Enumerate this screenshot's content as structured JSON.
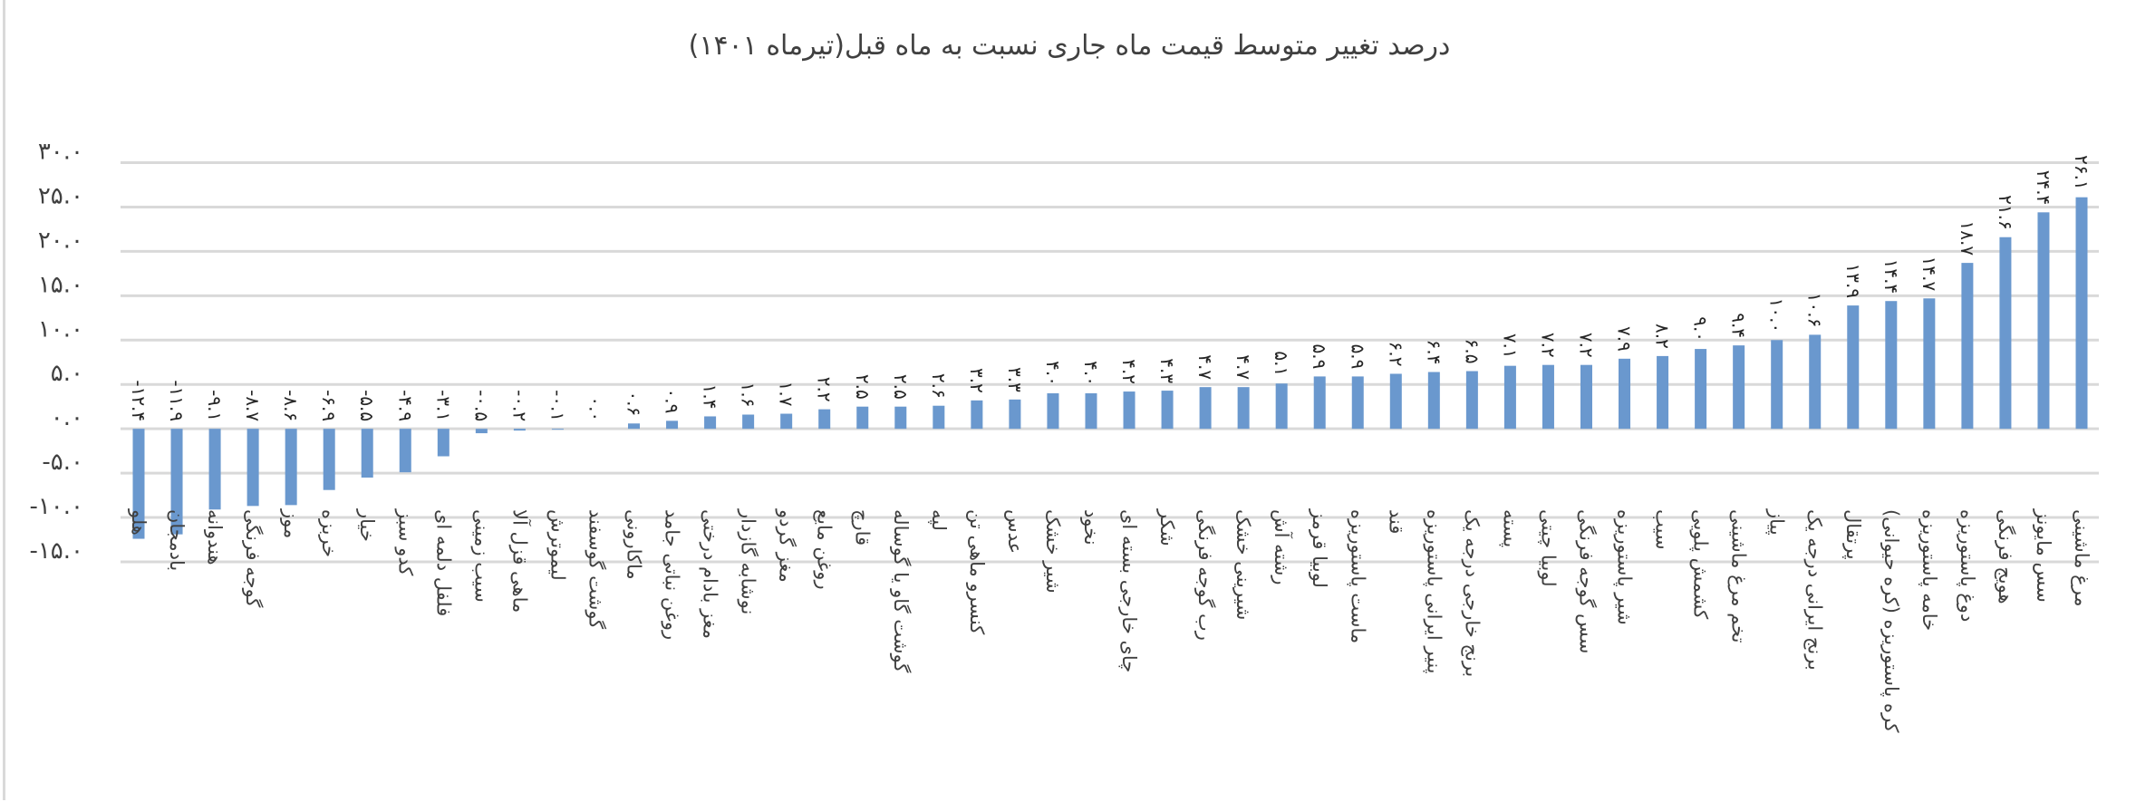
{
  "chart_data": {
    "type": "bar",
    "title": "درصد تغییر متوسط قیمت ماه جاری نسبت به ماه قبل(تیرماه ۱۴۰۱)",
    "xlabel": "",
    "ylabel": "",
    "ylim": [
      -15,
      30
    ],
    "yticks": [
      30,
      25,
      20,
      15,
      10,
      5,
      0,
      -5,
      -10,
      -15
    ],
    "ytick_labels": [
      "۳۰.۰",
      "۲۵.۰",
      "۲۰.۰",
      "۱۵.۰",
      "۱۰.۰",
      "۵.۰",
      "۰.۰",
      "-۵.۰",
      "-۱۰.۰",
      "-۱۵.۰"
    ],
    "grid": true,
    "bar_color": "#6a98ce",
    "grid_color": "#d9d9d9",
    "categories": [
      "هلو",
      "بادمجان",
      "هندوانه",
      "گوجه فرنگی",
      "موز",
      "خربزه",
      "خیار",
      "کدو سبز",
      "فلفل دلمه ای",
      "سیب زمینی",
      "ماهی قزل آلا",
      "لیموترش",
      "گوشت گوسفند",
      "ماکارونی",
      "روغن نباتی جامد",
      "مغز بادام درختی",
      "نوشابه گازدار",
      "مغز گردو",
      "روغن مایع",
      "قارچ",
      "گوشت گاو یا گوساله",
      "لپه",
      "کنسرو ماهی تن",
      "عدس",
      "شیر خشک",
      "نخود",
      "چای خارجی بسته ای",
      "شکر",
      "رب گوجه فرنگی",
      "شیرینی خشک",
      "رشته آش",
      "لوبیا قرمز",
      "ماست پاستوریزه",
      "قند",
      "پنیر ایرانی پاستوریزه",
      "برنج خارجی درجه یک",
      "پسته",
      "لوبیا چیتی",
      "سس گوجه فرنگی",
      "شیر پاستوریزه",
      "سیب",
      "کشمش پلویی",
      "تخم مرغ ماشینی",
      "پیاز",
      "برنج ایرانی درجه یک",
      "پرتقال",
      "کره پاستوریزه (کره حیوانی)",
      "خامه پاستوریزه",
      "دوغ پاستوریزه",
      "هویج فرنگی",
      "سس مایونز",
      "مرغ ماشینی"
    ],
    "values": [
      -12.4,
      -11.9,
      -9.1,
      -8.7,
      -8.6,
      -6.9,
      -5.5,
      -4.9,
      -3.1,
      -0.5,
      -0.2,
      -0.1,
      0.0,
      0.6,
      0.9,
      1.4,
      1.6,
      1.7,
      2.2,
      2.5,
      2.5,
      2.6,
      3.2,
      3.3,
      4.0,
      4.0,
      4.2,
      4.3,
      4.7,
      4.7,
      5.1,
      5.9,
      5.9,
      6.2,
      6.4,
      6.5,
      7.1,
      7.2,
      7.2,
      7.9,
      8.2,
      9.0,
      9.4,
      10.0,
      10.6,
      13.9,
      14.4,
      14.7,
      18.7,
      21.6,
      24.4,
      26.1
    ]
  }
}
